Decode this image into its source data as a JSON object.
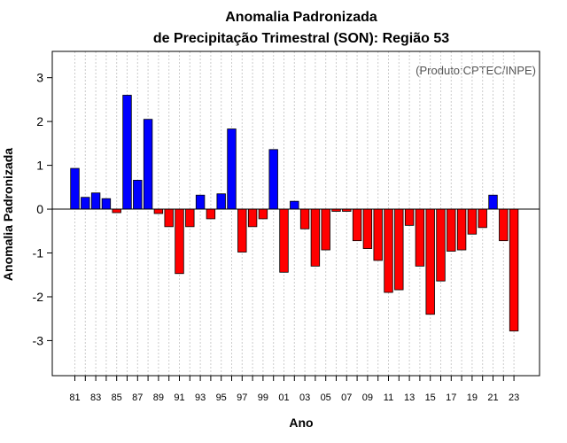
{
  "chart_data": {
    "type": "bar",
    "title_line1": "Anomalia Padronizada",
    "title_line2": "de Precipitação Trimestral (SON): Região 53",
    "xlabel": "Ano",
    "ylabel": "Anomalia Padronizada",
    "credit": "(Produto:CPTEC/INPE)",
    "ylim": [
      -3.8,
      3.6
    ],
    "yticks": [
      -3,
      -2,
      -1,
      0,
      1,
      2,
      3
    ],
    "categories": [
      "81",
      "82",
      "83",
      "84",
      "85",
      "86",
      "87",
      "88",
      "89",
      "90",
      "91",
      "92",
      "93",
      "94",
      "95",
      "96",
      "97",
      "98",
      "99",
      "00",
      "01",
      "02",
      "03",
      "04",
      "05",
      "06",
      "07",
      "08",
      "09",
      "10",
      "11",
      "12",
      "13",
      "14",
      "15",
      "16",
      "17",
      "18",
      "19",
      "20",
      "21",
      "22",
      "23"
    ],
    "xtick_labels": [
      "81",
      "83",
      "85",
      "87",
      "89",
      "91",
      "93",
      "95",
      "97",
      "99",
      "01",
      "03",
      "05",
      "07",
      "09",
      "11",
      "13",
      "15",
      "17",
      "19",
      "21",
      "23"
    ],
    "values": [
      0.93,
      0.27,
      0.37,
      0.24,
      -0.08,
      2.6,
      0.66,
      2.05,
      -0.1,
      -0.4,
      -1.47,
      -0.4,
      0.32,
      -0.22,
      0.35,
      1.83,
      -0.98,
      -0.4,
      -0.22,
      1.36,
      -1.44,
      0.18,
      -0.45,
      -1.3,
      -0.93,
      -0.05,
      -0.05,
      -0.72,
      -0.9,
      -1.17,
      -1.9,
      -1.84,
      -0.37,
      -1.3,
      -2.4,
      -1.64,
      -0.96,
      -0.93,
      -0.57,
      -0.42,
      0.32,
      -0.72,
      -2.78
    ],
    "positive_color": "#0000ff",
    "negative_color": "#ff0000",
    "grid": true
  }
}
